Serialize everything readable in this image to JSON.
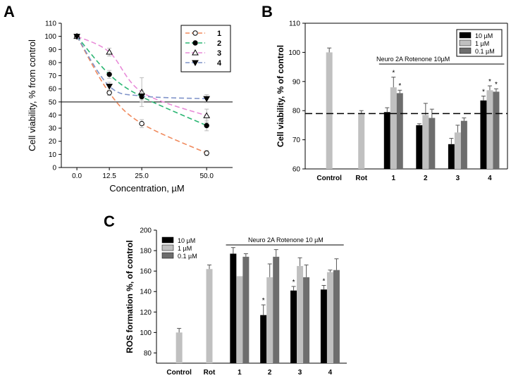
{
  "chart_data": [
    {
      "panel": "A",
      "type": "line",
      "xlabel": "Concentration, µM",
      "ylabel": "Cell viability, % from control",
      "x": [
        0.0,
        12.5,
        25.0,
        50.0
      ],
      "x_tick_labels": [
        "0.0",
        "12.5",
        "25.0",
        "50.0"
      ],
      "xlim": [
        -6,
        60
      ],
      "ylim": [
        0,
        110
      ],
      "y_ticks": [
        0,
        10,
        20,
        30,
        40,
        50,
        60,
        70,
        80,
        90,
        100,
        110
      ],
      "reference_line": 50,
      "legend_position": "top-right",
      "series": [
        {
          "name": "1",
          "values": [
            100,
            57,
            33.5,
            11
          ],
          "errors": [
            0,
            2,
            3,
            2
          ],
          "color": "#f08a5d",
          "marker": "circle-open"
        },
        {
          "name": "2",
          "values": [
            100,
            71,
            54,
            32
          ],
          "errors": [
            0,
            3,
            4,
            4
          ],
          "color": "#2bb673",
          "marker": "circle-filled"
        },
        {
          "name": "3",
          "values": [
            100,
            88,
            57.5,
            39.5
          ],
          "errors": [
            0,
            3,
            11,
            5
          ],
          "color": "#e88bd8",
          "marker": "triangle-open"
        },
        {
          "name": "4",
          "values": [
            100,
            62,
            54.5,
            52.5
          ],
          "errors": [
            0,
            3,
            3,
            3
          ],
          "color": "#7f93c9",
          "marker": "triangle-down-filled"
        }
      ]
    },
    {
      "panel": "B",
      "type": "bar",
      "ylabel": "Cell viability, % of control",
      "categories": [
        "Control",
        "Rot",
        "1",
        "2",
        "3",
        "4"
      ],
      "ylim": [
        60,
        110
      ],
      "y_ticks": [
        60,
        70,
        80,
        90,
        100,
        110
      ],
      "reference_line": 79,
      "annotation": "Neuro 2A Rotenone 10µM",
      "legend_position": "top-right",
      "single_bars": [
        {
          "category": "Control",
          "value": 100,
          "error": 1.5
        },
        {
          "category": "Rot",
          "value": 79,
          "error": 1
        }
      ],
      "series": [
        {
          "name": "10 µM",
          "color": "#000000",
          "values": [
            null,
            null,
            79.5,
            75,
            68.5,
            83.5
          ],
          "errors": [
            null,
            null,
            1.5,
            0.5,
            2,
            1.5
          ],
          "stars": [
            false,
            false,
            false,
            false,
            false,
            true
          ]
        },
        {
          "name": "1 µM",
          "color": "#c0c0c0",
          "values": [
            null,
            null,
            88,
            78.5,
            72.5,
            87
          ],
          "errors": [
            null,
            null,
            3.5,
            4,
            2.5,
            1.5
          ],
          "stars": [
            false,
            false,
            true,
            false,
            false,
            true
          ]
        },
        {
          "name": "0.1 µM",
          "color": "#6d6d6d",
          "values": [
            null,
            null,
            86,
            77.5,
            76.5,
            86.5
          ],
          "errors": [
            null,
            null,
            1,
            3,
            1,
            1
          ],
          "stars": [
            false,
            false,
            true,
            false,
            false,
            true
          ]
        }
      ]
    },
    {
      "panel": "C",
      "type": "bar",
      "ylabel": "ROS formation %, of control",
      "categories": [
        "Control",
        "Rot",
        "1",
        "2",
        "3",
        "4"
      ],
      "ylim": [
        70,
        200
      ],
      "y_ticks": [
        80,
        100,
        120,
        140,
        160,
        180,
        200
      ],
      "annotation": "Neuro 2A Rotenone 10 µM",
      "legend_position": "top-left",
      "single_bars": [
        {
          "category": "Control",
          "value": 100,
          "error": 4
        },
        {
          "category": "Rot",
          "value": 162,
          "error": 4
        }
      ],
      "series": [
        {
          "name": "10 µM",
          "color": "#000000",
          "values": [
            null,
            null,
            177,
            117,
            141,
            142
          ],
          "errors": [
            null,
            null,
            6,
            10,
            4,
            4
          ],
          "stars": [
            false,
            false,
            false,
            true,
            true,
            true
          ]
        },
        {
          "name": "1 µM",
          "color": "#c0c0c0",
          "values": [
            null,
            null,
            155,
            154,
            165,
            159
          ],
          "errors": [
            null,
            null,
            0,
            13,
            8,
            2
          ],
          "stars": [
            false,
            false,
            false,
            false,
            false,
            false
          ]
        },
        {
          "name": "0.1 µM",
          "color": "#6d6d6d",
          "values": [
            null,
            null,
            174,
            174,
            154,
            161
          ],
          "errors": [
            null,
            null,
            3,
            7,
            12,
            11
          ],
          "stars": [
            false,
            false,
            false,
            false,
            false,
            false
          ]
        }
      ]
    }
  ]
}
